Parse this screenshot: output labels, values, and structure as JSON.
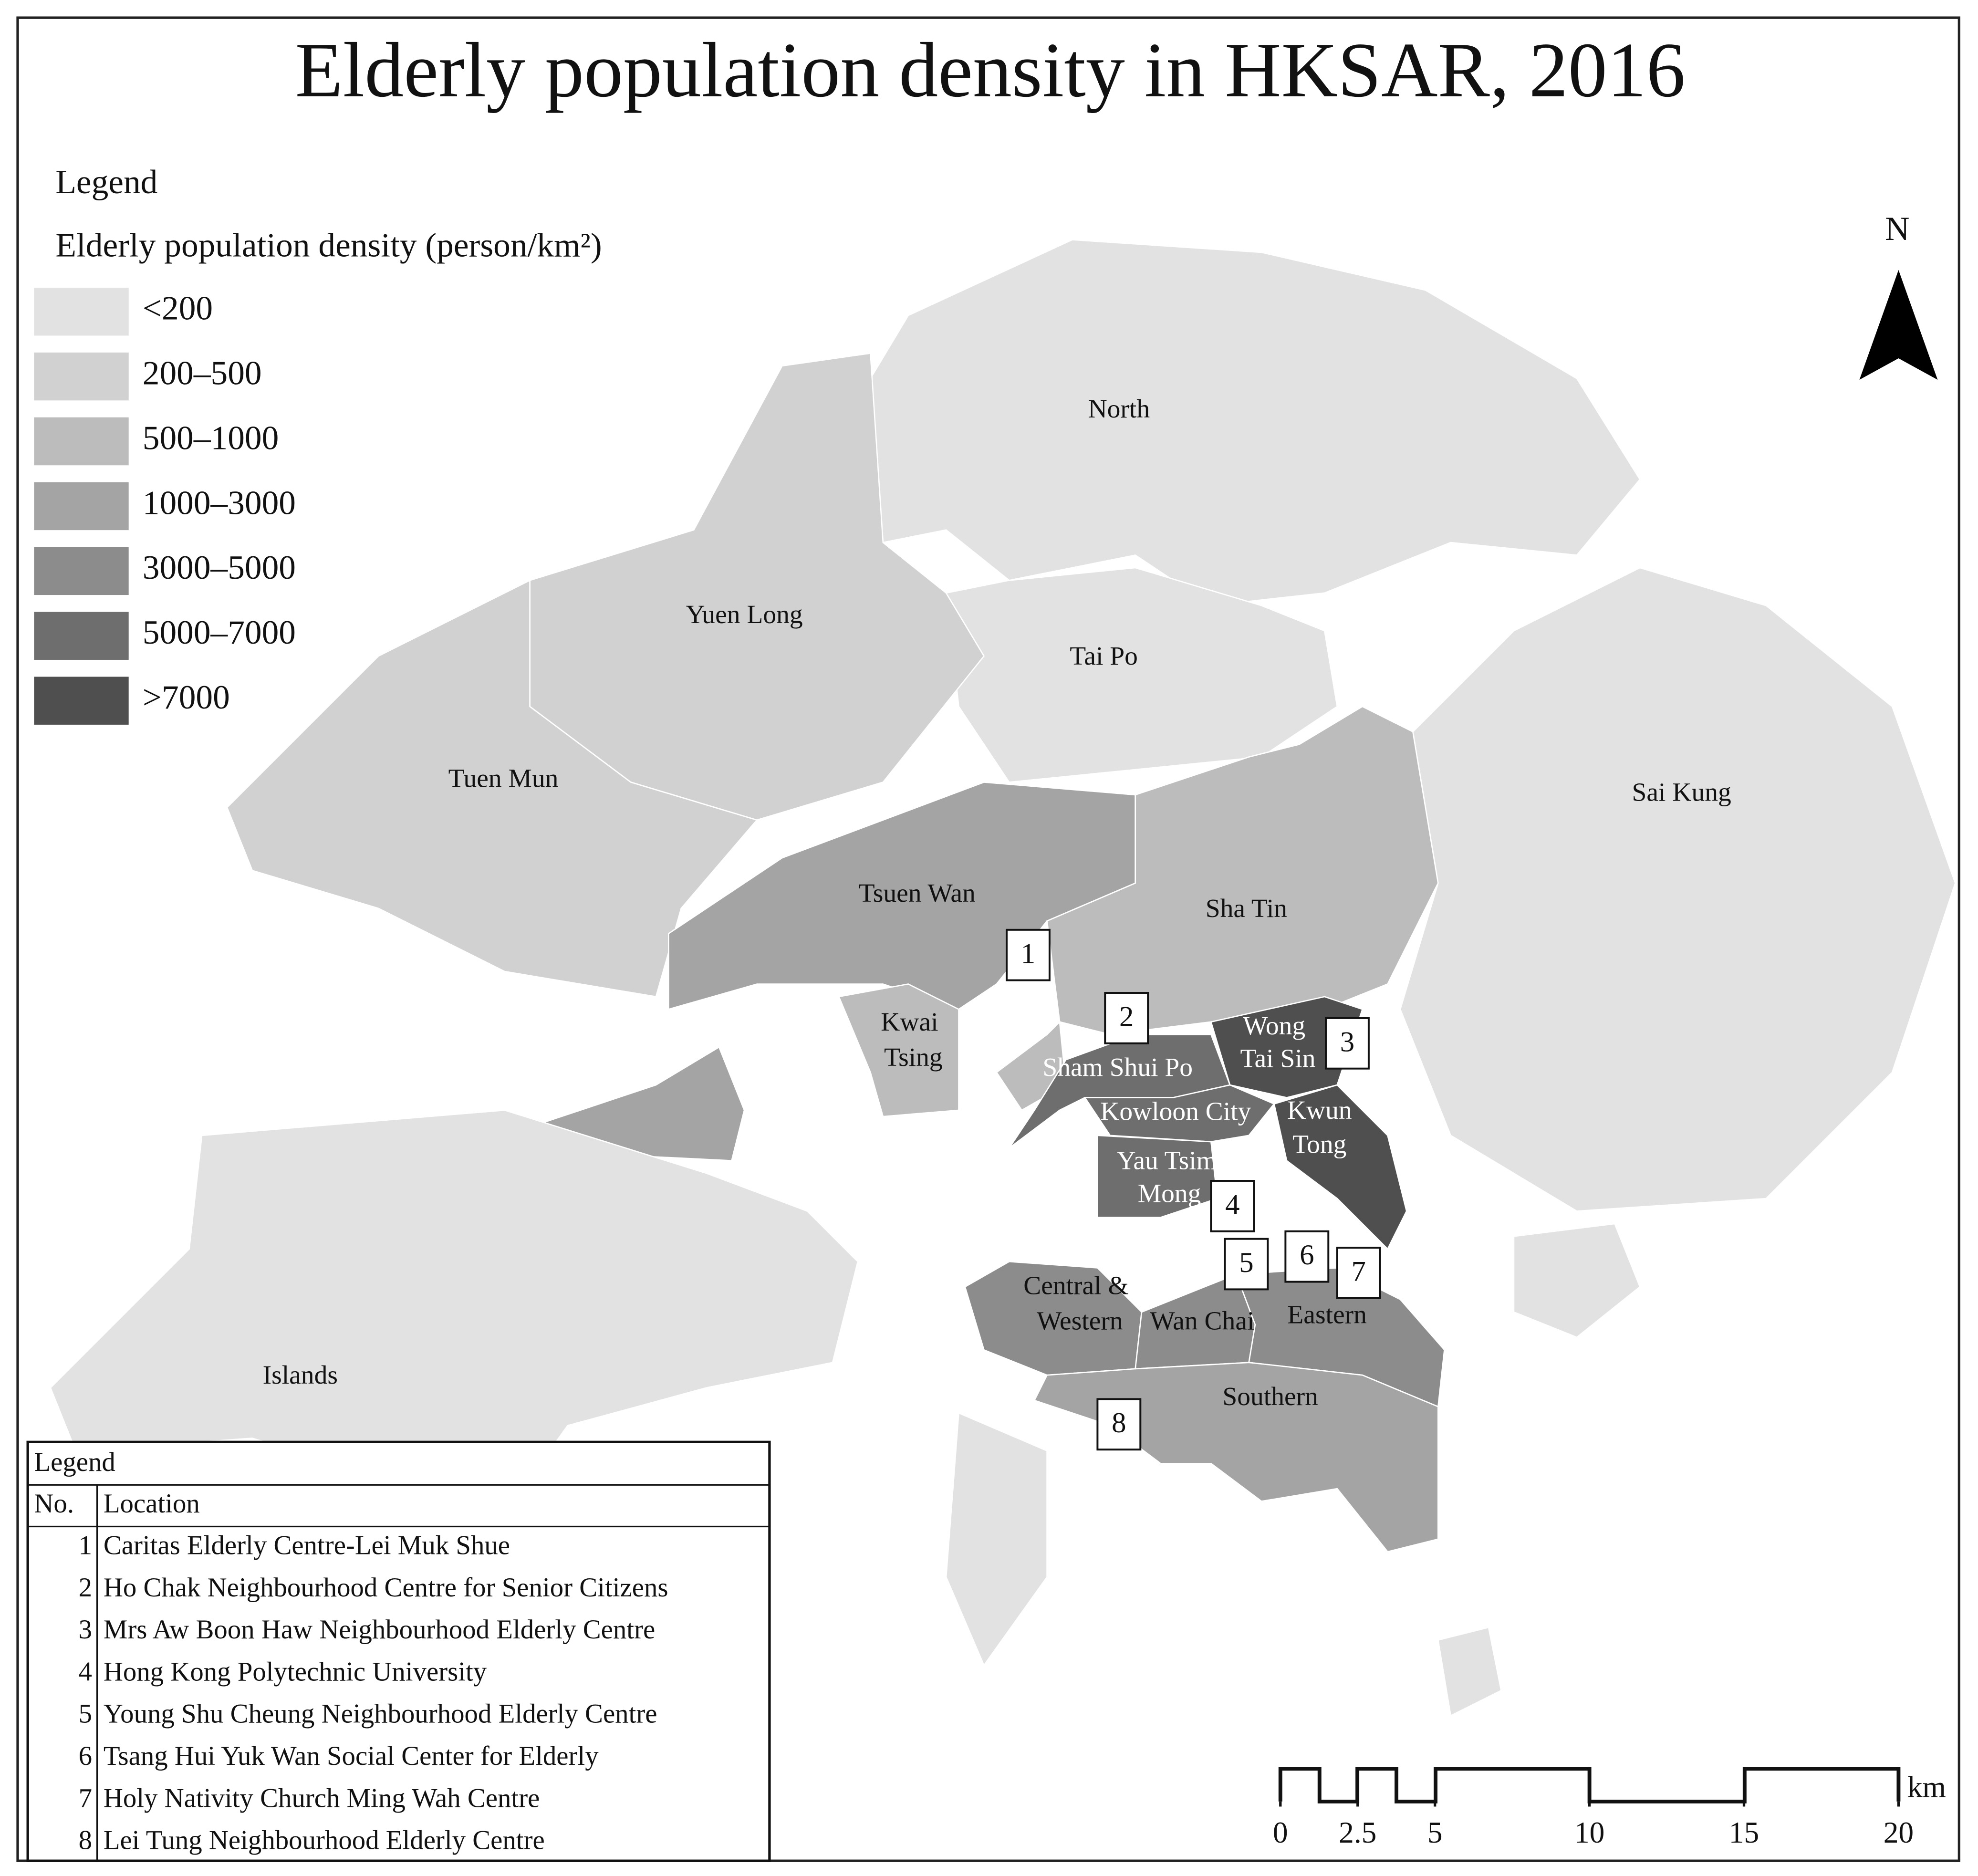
{
  "title": "Elderly population density in HKSAR, 2016",
  "legend": {
    "title": "Legend",
    "subtitle": "Elderly population density (person/km²)",
    "classes": [
      {
        "label": "<200",
        "color": "#e2e2e2"
      },
      {
        "label": "200–500",
        "color": "#d1d1d1"
      },
      {
        "label": "500–1000",
        "color": "#bcbcbc"
      },
      {
        "label": "1000–3000",
        "color": "#a4a4a4"
      },
      {
        "label": "3000–5000",
        "color": "#8c8c8c"
      },
      {
        "label": "5000–7000",
        "color": "#6e6e6e"
      },
      {
        "label": ">7000",
        "color": "#4f4f4f"
      }
    ]
  },
  "districts": [
    {
      "lines": [
        "North"
      ],
      "color": "#e2e2e2"
    },
    {
      "lines": [
        "Tai Po"
      ],
      "color": "#e2e2e2"
    },
    {
      "lines": [
        "Sai Kung"
      ],
      "color": "#e2e2e2"
    },
    {
      "lines": [
        "Yuen Long"
      ],
      "color": "#d1d1d1"
    },
    {
      "lines": [
        "Tuen Mun"
      ],
      "color": "#d1d1d1"
    },
    {
      "lines": [
        "Tsuen Wan"
      ],
      "color": "#a4a4a4"
    },
    {
      "lines": [
        "Sha Tin"
      ],
      "color": "#bcbcbc"
    },
    {
      "lines": [
        "Kwai",
        "Tsing"
      ],
      "color": "#bcbcbc"
    },
    {
      "lines": [
        "Sham Shui Po"
      ],
      "color": "#6e6e6e"
    },
    {
      "lines": [
        "Wong",
        "Tai Sin"
      ],
      "color": "#4f4f4f"
    },
    {
      "lines": [
        "Kowloon City"
      ],
      "color": "#6e6e6e"
    },
    {
      "lines": [
        "Kwun",
        "Tong"
      ],
      "color": "#4f4f4f"
    },
    {
      "lines": [
        "Yau Tsim",
        "Mong"
      ],
      "color": "#6e6e6e"
    },
    {
      "lines": [
        "Central &",
        "Western"
      ],
      "color": "#8c8c8c"
    },
    {
      "lines": [
        "Wan Chai"
      ],
      "color": "#8c8c8c"
    },
    {
      "lines": [
        "Eastern"
      ],
      "color": "#8c8c8c"
    },
    {
      "lines": [
        "Southern"
      ],
      "color": "#a4a4a4"
    },
    {
      "lines": [
        "Islands"
      ],
      "color": "#e2e2e2"
    }
  ],
  "markers": [
    "1",
    "2",
    "3",
    "4",
    "5",
    "6",
    "7",
    "8"
  ],
  "location_table": {
    "title": "Legend",
    "header": [
      "No.",
      "Location"
    ],
    "rows": [
      [
        "1",
        "Caritas Elderly Centre-Lei Muk Shue"
      ],
      [
        "2",
        "Ho Chak Neighbourhood Centre for Senior Citizens"
      ],
      [
        "3",
        "Mrs Aw Boon Haw Neighbourhood Elderly Centre"
      ],
      [
        "4",
        "Hong Kong Polytechnic University"
      ],
      [
        "5",
        "Young Shu Cheung Neighbourhood Elderly Centre"
      ],
      [
        "6",
        "Tsang Hui Yuk Wan Social Center for Elderly"
      ],
      [
        "7",
        "Holy Nativity Church Ming Wah Centre"
      ],
      [
        "8",
        "Lei Tung Neighbourhood Elderly Centre"
      ]
    ]
  },
  "north_label": "N",
  "scale_bar": {
    "ticks": [
      0,
      2.5,
      5,
      10,
      15,
      20
    ],
    "unit": "km"
  }
}
